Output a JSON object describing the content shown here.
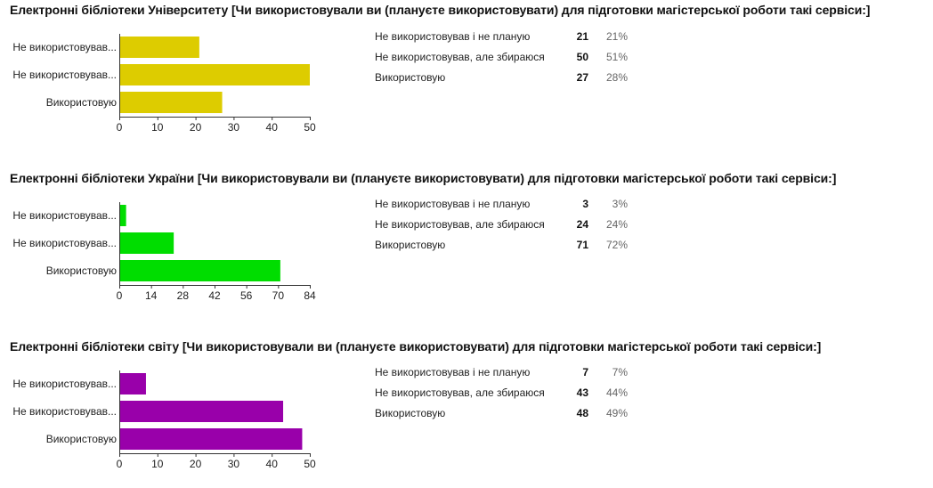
{
  "sections": [
    {
      "title": "Електронні бібліотеки Університету [Чи використовували ви (плануєте використовувати) для підготовки магістерської роботи такі сервіси:]",
      "color": "#ddcc00",
      "chart_data": {
        "type": "bar",
        "orientation": "horizontal",
        "categories": [
          "Не використовував...",
          "Не використовував...",
          "Використовую"
        ],
        "values": [
          21,
          50,
          27
        ],
        "xlim": [
          0,
          50
        ],
        "xticks": [
          0,
          10,
          20,
          30,
          40,
          50
        ]
      },
      "rows": [
        {
          "label": "Не використовував і не планую",
          "count": "21",
          "percent": "21%"
        },
        {
          "label": "Не використовував, але збираюся",
          "count": "50",
          "percent": "51%"
        },
        {
          "label": "Використовую",
          "count": "27",
          "percent": "28%"
        }
      ]
    },
    {
      "title": "Електронні бібліотеки України [Чи використовували ви (плануєте використовувати) для підготовки магістерської роботи такі сервіси:]",
      "color": "#00dd00",
      "chart_data": {
        "type": "bar",
        "orientation": "horizontal",
        "categories": [
          "Не використовував...",
          "Не використовував...",
          "Використовую"
        ],
        "values": [
          3,
          24,
          71
        ],
        "xlim": [
          0,
          84
        ],
        "xticks": [
          0,
          14,
          28,
          42,
          56,
          70,
          84
        ]
      },
      "rows": [
        {
          "label": "Не використовував і не планую",
          "count": "3",
          "percent": "3%"
        },
        {
          "label": "Не використовував, але збираюся",
          "count": "24",
          "percent": "24%"
        },
        {
          "label": "Використовую",
          "count": "71",
          "percent": "72%"
        }
      ]
    },
    {
      "title": "Електронні бібліотеки світу [Чи використовували ви (плануєте використовувати) для підготовки магістерської роботи такі сервіси:]",
      "color": "#9900aa",
      "chart_data": {
        "type": "bar",
        "orientation": "horizontal",
        "categories": [
          "Не використовував...",
          "Не використовував...",
          "Використовую"
        ],
        "values": [
          7,
          43,
          48
        ],
        "xlim": [
          0,
          50
        ],
        "xticks": [
          0,
          10,
          20,
          30,
          40,
          50
        ]
      },
      "rows": [
        {
          "label": "Не використовував і не планую",
          "count": "7",
          "percent": "7%"
        },
        {
          "label": "Не використовував, але збираюся",
          "count": "43",
          "percent": "44%"
        },
        {
          "label": "Використовую",
          "count": "48",
          "percent": "49%"
        }
      ]
    }
  ]
}
